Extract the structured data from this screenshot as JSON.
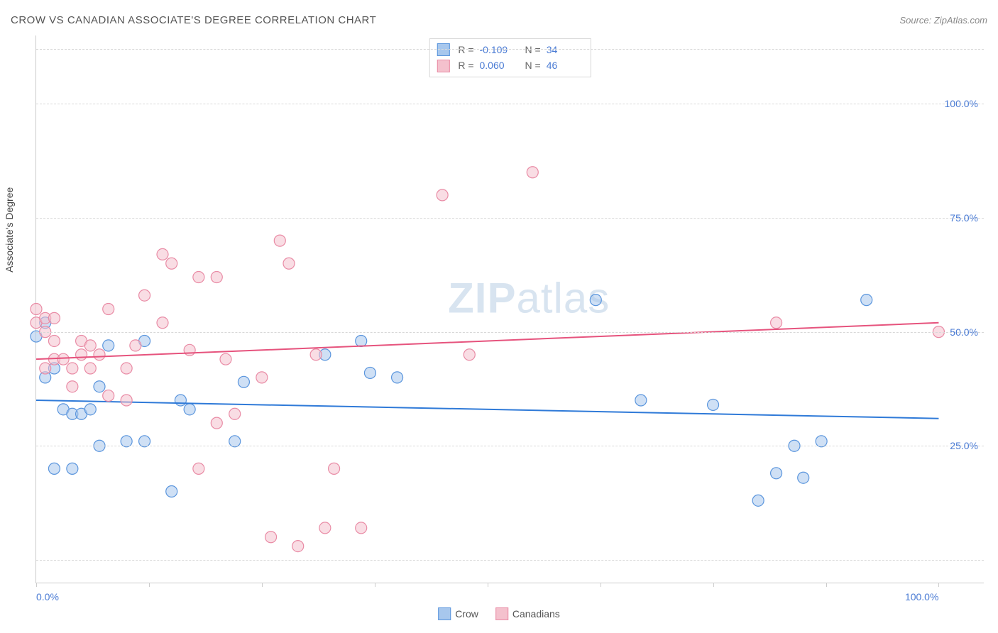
{
  "title": "CROW VS CANADIAN ASSOCIATE'S DEGREE CORRELATION CHART",
  "source": "Source: ZipAtlas.com",
  "watermark_prefix": "ZIP",
  "watermark_suffix": "atlas",
  "yaxis_label": "Associate's Degree",
  "chart": {
    "type": "scatter",
    "xlim": [
      0,
      105
    ],
    "ylim": [
      -5,
      115
    ],
    "xtick_positions": [
      0,
      12.5,
      25,
      37.5,
      50,
      62.5,
      75,
      87.5,
      100
    ],
    "xtick_labels": {
      "0": "0.0%",
      "100": "100.0%"
    },
    "ytick_positions": [
      25,
      50,
      75,
      100
    ],
    "ytick_labels": [
      "25.0%",
      "50.0%",
      "75.0%",
      "100.0%"
    ],
    "grid_positions": [
      0,
      25,
      50,
      75,
      100,
      112
    ],
    "grid_color": "#d8d8d8",
    "background_color": "#ffffff",
    "marker_radius": 8,
    "marker_opacity": 0.55,
    "marker_stroke_width": 1.2,
    "line_width": 2
  },
  "series": {
    "crow": {
      "label": "Crow",
      "fill_color": "#a7c7ed",
      "stroke_color": "#5a95dd",
      "line_color": "#2f7ad8",
      "R": "-0.109",
      "N": "34",
      "trend": {
        "x1": 0,
        "y1": 35,
        "x2": 100,
        "y2": 31
      },
      "points": [
        [
          0,
          49
        ],
        [
          1,
          40
        ],
        [
          1,
          52
        ],
        [
          2,
          42
        ],
        [
          2,
          20
        ],
        [
          3,
          33
        ],
        [
          4,
          20
        ],
        [
          4,
          32
        ],
        [
          5,
          32
        ],
        [
          6,
          33
        ],
        [
          7,
          38
        ],
        [
          7,
          25
        ],
        [
          8,
          47
        ],
        [
          10,
          26
        ],
        [
          12,
          26
        ],
        [
          12,
          48
        ],
        [
          15,
          15
        ],
        [
          16,
          35
        ],
        [
          17,
          33
        ],
        [
          22,
          26
        ],
        [
          23,
          39
        ],
        [
          32,
          45
        ],
        [
          36,
          48
        ],
        [
          37,
          41
        ],
        [
          40,
          40
        ],
        [
          62,
          57
        ],
        [
          67,
          35
        ],
        [
          75,
          34
        ],
        [
          80,
          13
        ],
        [
          82,
          19
        ],
        [
          84,
          25
        ],
        [
          85,
          18
        ],
        [
          87,
          26
        ],
        [
          92,
          57
        ]
      ]
    },
    "canadians": {
      "label": "Canadians",
      "fill_color": "#f4c1cd",
      "stroke_color": "#e98ba5",
      "line_color": "#e6537d",
      "R": "0.060",
      "N": "46",
      "trend": {
        "x1": 0,
        "y1": 44,
        "x2": 100,
        "y2": 52
      },
      "points": [
        [
          0,
          52
        ],
        [
          0,
          55
        ],
        [
          1,
          50
        ],
        [
          1,
          53
        ],
        [
          1,
          42
        ],
        [
          2,
          53
        ],
        [
          2,
          44
        ],
        [
          2,
          48
        ],
        [
          3,
          44
        ],
        [
          4,
          42
        ],
        [
          4,
          38
        ],
        [
          5,
          48
        ],
        [
          5,
          45
        ],
        [
          6,
          47
        ],
        [
          6,
          42
        ],
        [
          7,
          45
        ],
        [
          8,
          55
        ],
        [
          8,
          36
        ],
        [
          10,
          35
        ],
        [
          10,
          42
        ],
        [
          11,
          47
        ],
        [
          12,
          58
        ],
        [
          14,
          52
        ],
        [
          14,
          67
        ],
        [
          15,
          65
        ],
        [
          17,
          46
        ],
        [
          18,
          20
        ],
        [
          18,
          62
        ],
        [
          20,
          30
        ],
        [
          20,
          62
        ],
        [
          21,
          44
        ],
        [
          22,
          32
        ],
        [
          25,
          40
        ],
        [
          26,
          5
        ],
        [
          27,
          70
        ],
        [
          28,
          65
        ],
        [
          29,
          3
        ],
        [
          31,
          45
        ],
        [
          32,
          7
        ],
        [
          33,
          20
        ],
        [
          36,
          7
        ],
        [
          45,
          80
        ],
        [
          48,
          45
        ],
        [
          55,
          85
        ],
        [
          82,
          52
        ],
        [
          100,
          50
        ]
      ]
    }
  },
  "legend_top_rows": [
    {
      "series": "crow",
      "R_label": "R =",
      "N_label": "N ="
    },
    {
      "series": "canadians",
      "R_label": "R =",
      "N_label": "N ="
    }
  ],
  "legend_bottom": [
    "crow",
    "canadians"
  ]
}
